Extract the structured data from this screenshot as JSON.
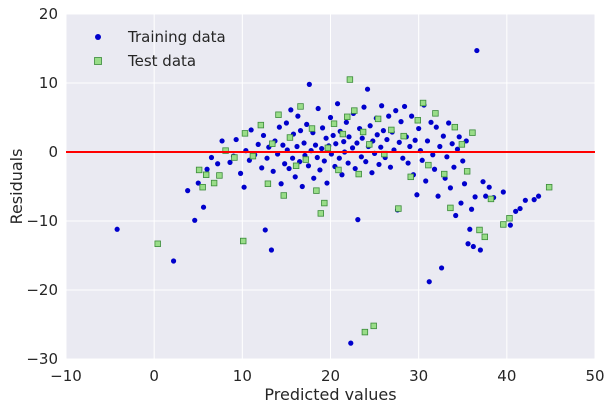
{
  "chart_data": {
    "type": "scatter",
    "title": "",
    "xlabel": "Predicted values",
    "ylabel": "Residuals",
    "xlim": [
      -10,
      50
    ],
    "ylim": [
      -30,
      20
    ],
    "xticks": [
      -10,
      0,
      10,
      20,
      30,
      40,
      50
    ],
    "yticks": [
      -30,
      -20,
      -10,
      0,
      10,
      20
    ],
    "xtick_labels": [
      "−10",
      "0",
      "10",
      "20",
      "30",
      "40",
      "50"
    ],
    "ytick_labels": [
      "−30",
      "−20",
      "−10",
      "0",
      "10",
      "20"
    ],
    "grid": true,
    "background": "#eaeaf2",
    "grid_color": "#ffffff",
    "legend_position": "top-left",
    "reference_line": {
      "y": 0,
      "color": "#ff0000"
    },
    "series": [
      {
        "name": "Training data",
        "marker": "circle",
        "color": "#0000cc",
        "points": [
          [
            -4.2,
            -11.2
          ],
          [
            2.2,
            -15.8
          ],
          [
            3.8,
            -5.6
          ],
          [
            4.6,
            -9.9
          ],
          [
            5.0,
            -4.5
          ],
          [
            5.6,
            -8.0
          ],
          [
            6.0,
            -2.5
          ],
          [
            6.5,
            -0.8
          ],
          [
            7.2,
            -1.7
          ],
          [
            7.7,
            1.6
          ],
          [
            8.6,
            -1.5
          ],
          [
            9.0,
            -0.6
          ],
          [
            9.3,
            1.8
          ],
          [
            9.8,
            -3.1
          ],
          [
            10.2,
            -5.1
          ],
          [
            10.4,
            0.2
          ],
          [
            10.8,
            -1.2
          ],
          [
            11.0,
            3.2
          ],
          [
            11.4,
            -0.4
          ],
          [
            11.8,
            1.1
          ],
          [
            12.2,
            -2.3
          ],
          [
            12.4,
            2.4
          ],
          [
            12.6,
            -11.3
          ],
          [
            12.8,
            -0.9
          ],
          [
            13.0,
            0.7
          ],
          [
            13.3,
            -14.2
          ],
          [
            13.5,
            -2.8
          ],
          [
            13.7,
            1.6
          ],
          [
            14.0,
            -0.3
          ],
          [
            14.2,
            3.6
          ],
          [
            14.4,
            -4.6
          ],
          [
            14.6,
            1.0
          ],
          [
            14.8,
            -1.7
          ],
          [
            15.0,
            4.2
          ],
          [
            15.1,
            0.3
          ],
          [
            15.3,
            -2.4
          ],
          [
            15.5,
            6.1
          ],
          [
            15.7,
            -0.9
          ],
          [
            15.8,
            2.6
          ],
          [
            16.0,
            -3.6
          ],
          [
            16.2,
            0.8
          ],
          [
            16.3,
            5.2
          ],
          [
            16.5,
            -1.4
          ],
          [
            16.6,
            3.1
          ],
          [
            16.8,
            -5.0
          ],
          [
            17.0,
            1.3
          ],
          [
            17.1,
            -0.5
          ],
          [
            17.3,
            4.0
          ],
          [
            17.5,
            -2.0
          ],
          [
            17.6,
            9.8
          ],
          [
            17.8,
            0.2
          ],
          [
            18.0,
            2.8
          ],
          [
            18.1,
            -3.8
          ],
          [
            18.3,
            1.0
          ],
          [
            18.5,
            -0.8
          ],
          [
            18.6,
            6.3
          ],
          [
            18.8,
            -2.6
          ],
          [
            19.0,
            0.5
          ],
          [
            19.1,
            3.5
          ],
          [
            19.3,
            -1.3
          ],
          [
            19.5,
            2.0
          ],
          [
            19.6,
            -4.5
          ],
          [
            19.8,
            0.9
          ],
          [
            20.0,
            5.0
          ],
          [
            20.1,
            -0.3
          ],
          [
            20.3,
            2.4
          ],
          [
            20.5,
            -2.1
          ],
          [
            20.6,
            1.2
          ],
          [
            20.8,
            7.0
          ],
          [
            21.0,
            -0.9
          ],
          [
            21.1,
            3.0
          ],
          [
            21.3,
            -3.3
          ],
          [
            21.5,
            1.5
          ],
          [
            21.6,
            0.0
          ],
          [
            21.8,
            4.3
          ],
          [
            22.0,
            -1.6
          ],
          [
            22.1,
            2.2
          ],
          [
            22.3,
            -27.7
          ],
          [
            22.5,
            0.6
          ],
          [
            22.6,
            5.6
          ],
          [
            22.8,
            -2.4
          ],
          [
            23.0,
            1.3
          ],
          [
            23.1,
            -9.8
          ],
          [
            23.3,
            3.4
          ],
          [
            23.5,
            -0.7
          ],
          [
            23.6,
            2.0
          ],
          [
            23.8,
            6.5
          ],
          [
            24.0,
            -1.4
          ],
          [
            24.2,
            9.1
          ],
          [
            24.3,
            0.8
          ],
          [
            24.5,
            3.8
          ],
          [
            24.7,
            -3.0
          ],
          [
            24.8,
            1.6
          ],
          [
            25.0,
            -0.2
          ],
          [
            25.2,
            4.9
          ],
          [
            25.3,
            2.5
          ],
          [
            25.5,
            -1.8
          ],
          [
            25.7,
            0.7
          ],
          [
            25.8,
            6.7
          ],
          [
            26.0,
            3.1
          ],
          [
            26.2,
            -0.8
          ],
          [
            26.4,
            1.8
          ],
          [
            26.6,
            5.2
          ],
          [
            26.8,
            -2.2
          ],
          [
            27.0,
            2.9
          ],
          [
            27.2,
            0.3
          ],
          [
            27.4,
            6.0
          ],
          [
            27.6,
            -8.4
          ],
          [
            27.8,
            1.4
          ],
          [
            28.0,
            4.4
          ],
          [
            28.2,
            -0.9
          ],
          [
            28.4,
            6.6
          ],
          [
            28.6,
            2.2
          ],
          [
            28.8,
            -1.6
          ],
          [
            29.0,
            0.8
          ],
          [
            29.2,
            5.2
          ],
          [
            29.4,
            -3.3
          ],
          [
            29.6,
            1.7
          ],
          [
            29.8,
            -6.2
          ],
          [
            30.0,
            3.4
          ],
          [
            30.2,
            0.2
          ],
          [
            30.4,
            -1.2
          ],
          [
            30.6,
            6.8
          ],
          [
            30.8,
            -4.2
          ],
          [
            31.0,
            1.6
          ],
          [
            31.2,
            -18.8
          ],
          [
            31.4,
            4.3
          ],
          [
            31.6,
            -0.4
          ],
          [
            31.8,
            -2.5
          ],
          [
            32.0,
            3.6
          ],
          [
            32.2,
            -6.4
          ],
          [
            32.4,
            0.8
          ],
          [
            32.6,
            -16.8
          ],
          [
            32.8,
            2.3
          ],
          [
            33.0,
            -3.8
          ],
          [
            33.2,
            -0.7
          ],
          [
            33.4,
            4.2
          ],
          [
            33.6,
            -5.2
          ],
          [
            33.8,
            1.2
          ],
          [
            34.0,
            -2.2
          ],
          [
            34.2,
            -9.2
          ],
          [
            34.4,
            0.4
          ],
          [
            34.6,
            2.2
          ],
          [
            34.8,
            -7.4
          ],
          [
            35.0,
            -1.3
          ],
          [
            35.2,
            -4.6
          ],
          [
            35.4,
            1.6
          ],
          [
            35.6,
            -13.3
          ],
          [
            35.8,
            -11.2
          ],
          [
            36.0,
            -8.3
          ],
          [
            36.2,
            -13.7
          ],
          [
            36.4,
            -6.5
          ],
          [
            36.6,
            14.7
          ],
          [
            37.0,
            -14.2
          ],
          [
            37.3,
            -4.3
          ],
          [
            37.6,
            -6.4
          ],
          [
            38.0,
            -5.1
          ],
          [
            38.5,
            -6.6
          ],
          [
            39.6,
            -5.8
          ],
          [
            40.4,
            -10.6
          ],
          [
            41.0,
            -8.6
          ],
          [
            41.5,
            -8.2
          ],
          [
            42.1,
            -7.0
          ],
          [
            43.1,
            -6.9
          ],
          [
            43.6,
            -6.4
          ]
        ]
      },
      {
        "name": "Test data",
        "marker": "square",
        "color": "#99dd88",
        "edge_color": "#3a8a3a",
        "points": [
          [
            0.4,
            -13.3
          ],
          [
            5.1,
            -2.6
          ],
          [
            5.5,
            -5.1
          ],
          [
            5.9,
            -3.3
          ],
          [
            6.8,
            -4.5
          ],
          [
            7.4,
            -3.4
          ],
          [
            8.1,
            0.2
          ],
          [
            9.1,
            -0.8
          ],
          [
            10.1,
            -12.9
          ],
          [
            10.3,
            2.7
          ],
          [
            11.2,
            -0.6
          ],
          [
            12.1,
            3.9
          ],
          [
            12.9,
            -4.6
          ],
          [
            13.4,
            1.2
          ],
          [
            14.1,
            5.4
          ],
          [
            14.7,
            -6.3
          ],
          [
            15.4,
            2.1
          ],
          [
            16.1,
            -2.0
          ],
          [
            16.6,
            6.6
          ],
          [
            17.2,
            -1.1
          ],
          [
            17.9,
            3.4
          ],
          [
            18.4,
            -5.6
          ],
          [
            18.9,
            -8.9
          ],
          [
            19.3,
            -7.4
          ],
          [
            19.7,
            0.6
          ],
          [
            20.4,
            4.1
          ],
          [
            20.9,
            -2.6
          ],
          [
            21.4,
            2.6
          ],
          [
            21.9,
            5.1
          ],
          [
            22.2,
            10.5
          ],
          [
            22.7,
            6.0
          ],
          [
            23.2,
            -3.2
          ],
          [
            23.7,
            2.9
          ],
          [
            23.9,
            -26.1
          ],
          [
            24.4,
            1.1
          ],
          [
            24.9,
            -25.2
          ],
          [
            25.4,
            4.8
          ],
          [
            26.1,
            -0.3
          ],
          [
            26.9,
            3.2
          ],
          [
            27.7,
            -8.2
          ],
          [
            28.3,
            2.3
          ],
          [
            29.1,
            -3.6
          ],
          [
            29.9,
            4.6
          ],
          [
            30.5,
            7.1
          ],
          [
            31.1,
            -1.9
          ],
          [
            31.9,
            5.6
          ],
          [
            32.9,
            -3.2
          ],
          [
            33.6,
            -8.1
          ],
          [
            34.1,
            3.6
          ],
          [
            34.9,
            1.1
          ],
          [
            35.5,
            -2.8
          ],
          [
            36.1,
            2.8
          ],
          [
            36.9,
            -11.3
          ],
          [
            37.5,
            -12.3
          ],
          [
            38.2,
            -6.8
          ],
          [
            39.6,
            -10.5
          ],
          [
            40.3,
            -9.6
          ],
          [
            44.8,
            -5.1
          ]
        ]
      }
    ]
  }
}
